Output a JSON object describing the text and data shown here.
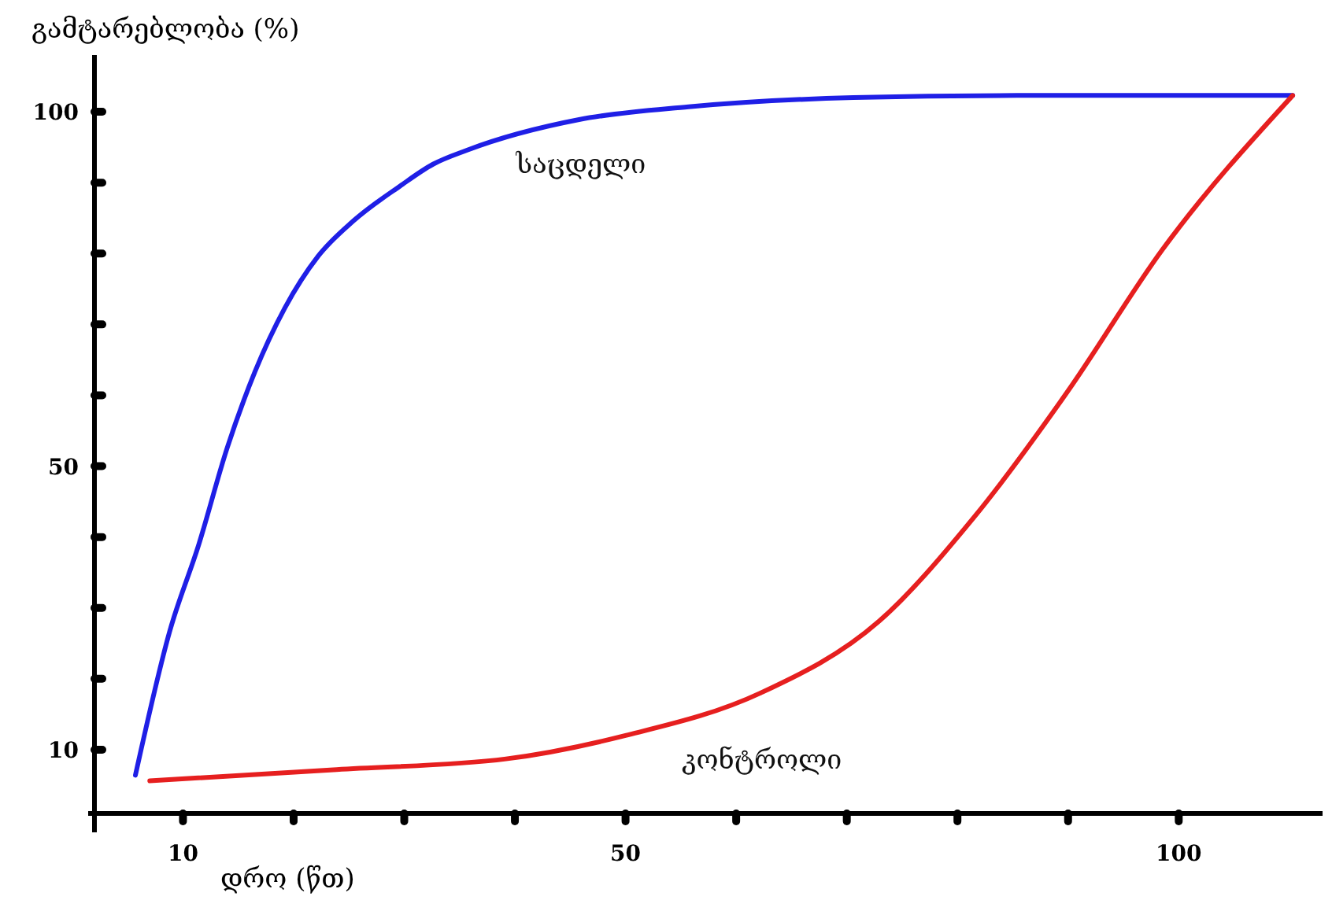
{
  "chart_data": {
    "type": "line",
    "xlabel": "დრო (წთ)",
    "ylabel": "გამტარებლობა (%)",
    "xlim": [
      2,
      113
    ],
    "ylim": [
      1,
      108
    ],
    "xticks": [
      {
        "value": 10,
        "label": "10"
      },
      {
        "value": 20,
        "label": null
      },
      {
        "value": 30,
        "label": null
      },
      {
        "value": 40,
        "label": null
      },
      {
        "value": 50,
        "label": "50"
      },
      {
        "value": 60,
        "label": null
      },
      {
        "value": 70,
        "label": null
      },
      {
        "value": 80,
        "label": null
      },
      {
        "value": 90,
        "label": null
      },
      {
        "value": 100,
        "label": "100"
      }
    ],
    "yticks": [
      {
        "value": 10,
        "label": "10"
      },
      {
        "value": 20,
        "label": null
      },
      {
        "value": 30,
        "label": null
      },
      {
        "value": 40,
        "label": null
      },
      {
        "value": 50,
        "label": "50"
      },
      {
        "value": 60,
        "label": null
      },
      {
        "value": 70,
        "label": null
      },
      {
        "value": 80,
        "label": null
      },
      {
        "value": 90,
        "label": null
      },
      {
        "value": 100,
        "label": "100"
      }
    ],
    "grid": false,
    "legend": false,
    "marker": "none",
    "line_style": "solid",
    "series": [
      {
        "name": "საცდელი",
        "color": "#1f1fe6",
        "x": [
          5.7,
          8.8,
          11.4,
          14.0,
          16.5,
          19.2,
          22.2,
          25.4,
          29.6,
          32.6,
          35.7,
          45.8,
          55.7,
          70.6,
          85.4,
          110.3
        ],
        "values": [
          6.4,
          26.7,
          38.8,
          52.6,
          63.3,
          72.3,
          79.6,
          84.6,
          89.5,
          92.6,
          94.6,
          98.9,
          100.7,
          102.0,
          102.3,
          102.3
        ]
      },
      {
        "name": "კონტროლი",
        "color": "#e61f1f",
        "x": [
          7.0,
          23.9,
          39.2,
          50.0,
          62.2,
          72.9,
          81.4,
          89.9,
          98.5,
          110.3
        ],
        "values": [
          5.6,
          7.2,
          8.7,
          12.0,
          18.0,
          28.1,
          42.6,
          60.4,
          80.5,
          102.3
        ]
      }
    ]
  }
}
